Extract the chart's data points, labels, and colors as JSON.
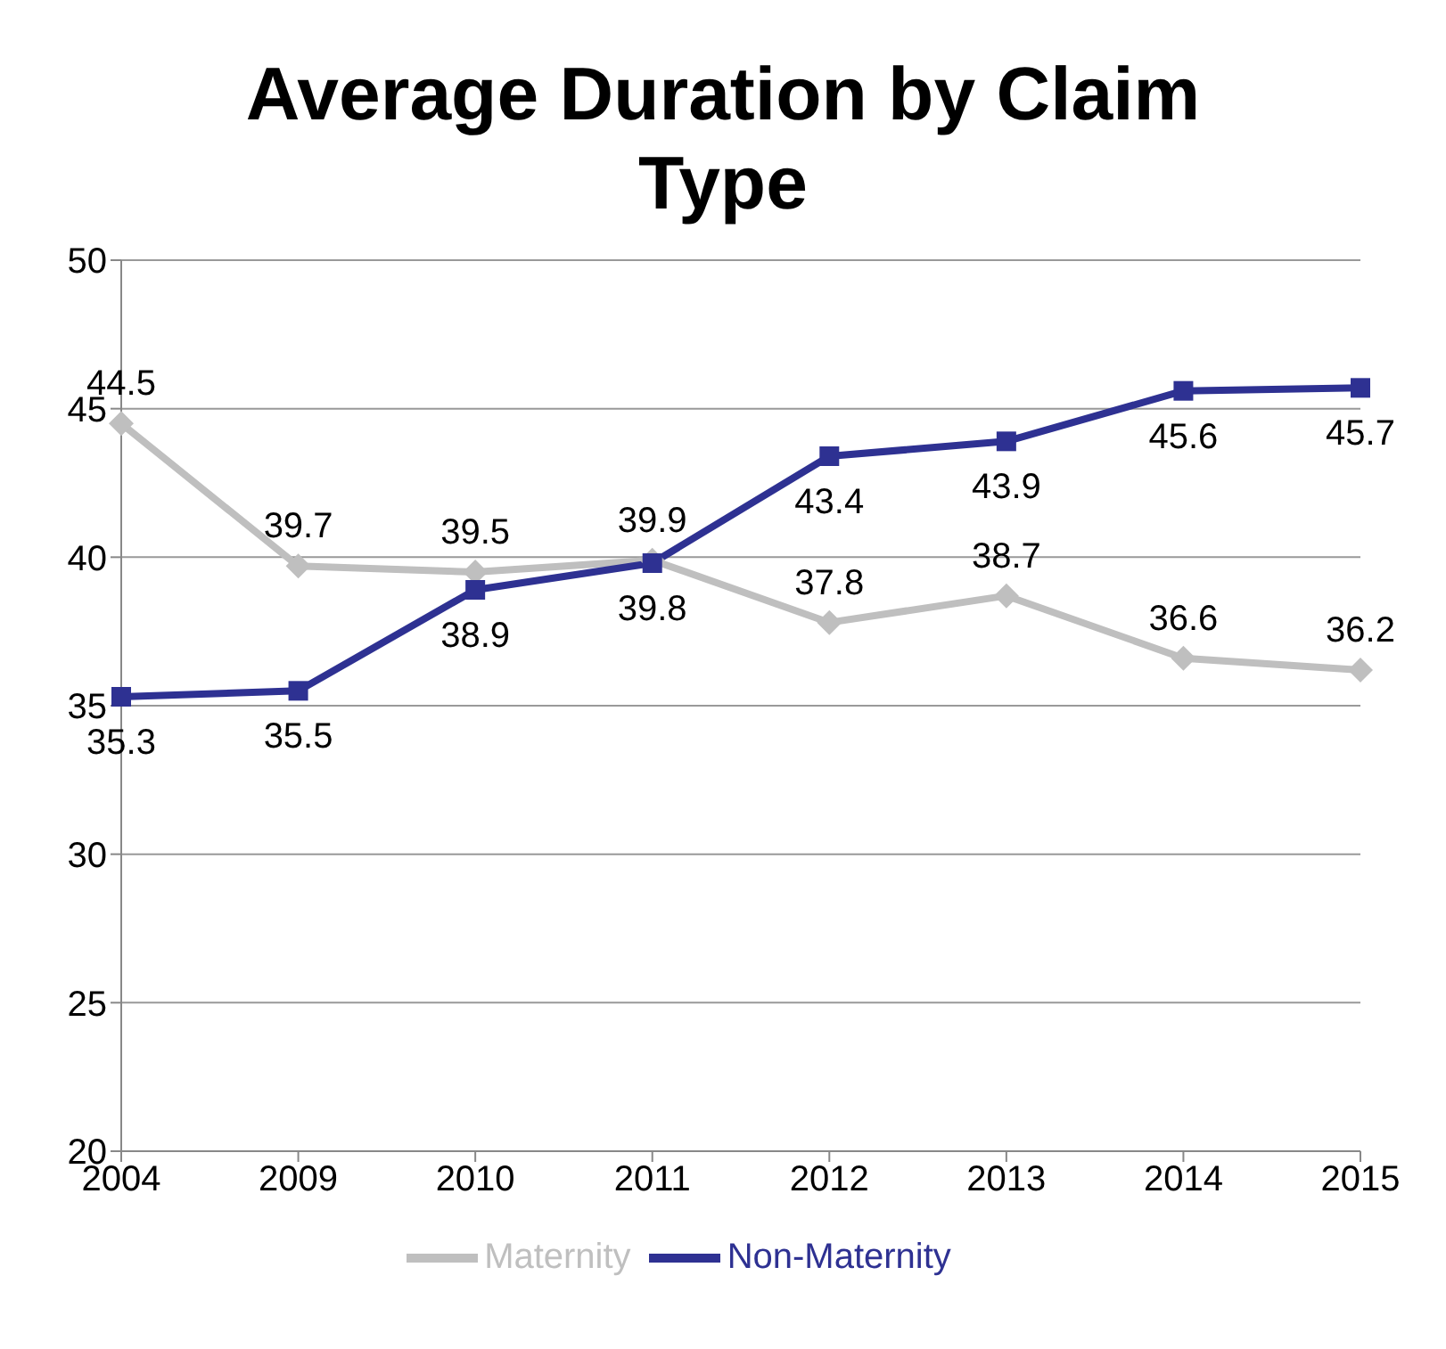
{
  "chart_data": {
    "type": "line",
    "title": "Average Duration by Claim Type",
    "categories": [
      "2004",
      "2009",
      "2010",
      "2011",
      "2012",
      "2013",
      "2014",
      "2015"
    ],
    "series": [
      {
        "name": "Maternity",
        "color": "#bfbfbf",
        "marker": "diamond",
        "values": [
          44.5,
          39.7,
          39.5,
          39.9,
          37.8,
          38.7,
          36.6,
          36.2
        ]
      },
      {
        "name": "Non-Maternity",
        "color": "#2e3192",
        "marker": "square",
        "values": [
          35.3,
          35.5,
          38.9,
          39.8,
          43.4,
          43.9,
          45.6,
          45.7
        ]
      }
    ],
    "ylim": [
      20,
      50
    ],
    "yticks": [
      20,
      25,
      30,
      35,
      40,
      45,
      50
    ],
    "grid": "y",
    "legend": "bottom",
    "data_labels": true,
    "line_style": "solid"
  }
}
